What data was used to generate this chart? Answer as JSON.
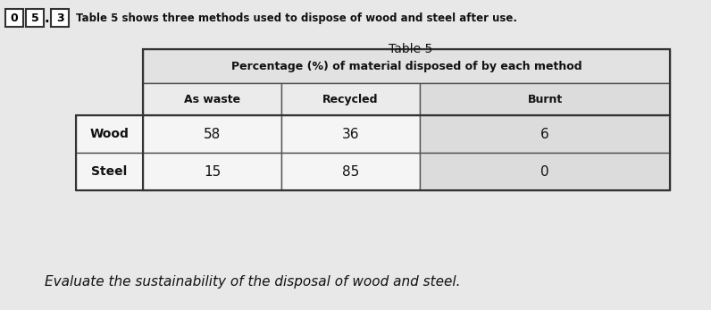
{
  "intro_text": "Table 5 shows three methods used to dispose of wood and steel after use.",
  "table_title": "Table 5",
  "col_header_main": "Percentage (%) of material disposed of by each method",
  "col_headers": [
    "As waste",
    "Recycled",
    "Burnt"
  ],
  "row_labels": [
    "Wood",
    "Steel"
  ],
  "data": [
    [
      58,
      36,
      6
    ],
    [
      15,
      85,
      0
    ]
  ],
  "footer_text": "Evaluate the sustainability of the disposal of wood and steel.",
  "bg_color": "#e8e8e8",
  "table_bg": "#f0f0f0",
  "header_fill": "#e2e2e2",
  "subheader_fill": "#ebebeb",
  "data_fill_light": "#f5f5f5",
  "data_fill_dark": "#dcdcdc",
  "border_color": "#555555",
  "text_color": "#111111"
}
